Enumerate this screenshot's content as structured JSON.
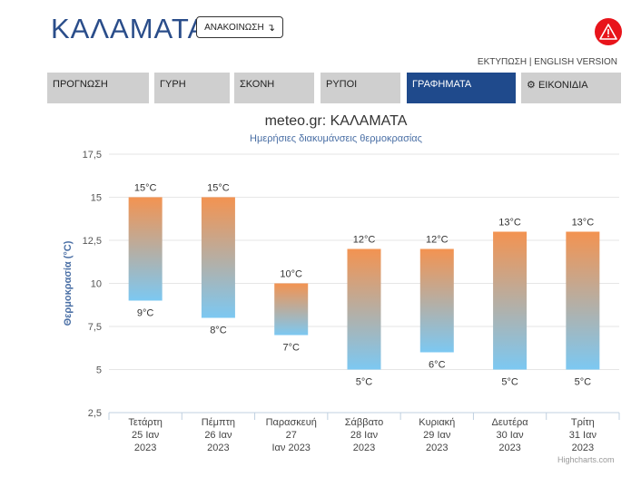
{
  "header": {
    "city": "ΚΑΛΑΜΑΤΑ",
    "announce_label": "ΑΝΑΚΟΙΝΩΣΗ",
    "announce_icon": "turn-down-arrow-icon",
    "alert_icon": "warning-triangle-icon",
    "alert_color": "#e8141b",
    "print_label": "ΕΚΤΥΠΩΣΗ",
    "separator": "|",
    "english_label": "ENGLISH VERSION"
  },
  "tabs": [
    {
      "label": "ΠΡΟΓΝΩΣΗ",
      "active": false
    },
    {
      "label": "ΓΥΡΗ",
      "active": false
    },
    {
      "label": "ΣΚΟΝΗ",
      "active": false
    },
    {
      "label": "ΡΥΠΟΙ",
      "active": false
    },
    {
      "label": "ΓΡΑΦΗΜΑΤΑ",
      "active": true
    },
    {
      "label": "ΕΙΚΟΝΙΔΙΑ",
      "icon": "gear-icon",
      "active": false
    }
  ],
  "colors": {
    "brand": "#2a4d8a",
    "active_tab": "#1f4a8c",
    "bar_top": "#f39351",
    "bar_bottom": "#7cc8f2"
  },
  "chart_data": {
    "type": "bar",
    "subtype": "columnrange",
    "title": "meteo.gr: ΚΑΛΑΜΑΤΑ",
    "subtitle": "Ημερήσιες διακυμάνσεις θερμοκρασίας",
    "ylabel": "Θερμοκρασία (°C)",
    "ylim": [
      2.5,
      17.5
    ],
    "yticks": [
      "2,5",
      "5",
      "7,5",
      "10",
      "12,5",
      "15",
      "17,5"
    ],
    "grid": true,
    "unit": "°C",
    "categories": [
      [
        "Τετάρτη",
        "25 Ιαν",
        "2023"
      ],
      [
        "Πέμπτη",
        "26 Ιαν",
        "2023"
      ],
      [
        "Παρασκευή",
        "27",
        "Ιαν 2023"
      ],
      [
        "Σάββατο",
        "28 Ιαν",
        "2023"
      ],
      [
        "Κυριακή",
        "29 Ιαν",
        "2023"
      ],
      [
        "Δευτέρα",
        "30 Ιαν",
        "2023"
      ],
      [
        "Τρίτη",
        "31 Ιαν",
        "2023"
      ]
    ],
    "max": [
      15,
      15,
      10,
      12,
      12,
      13,
      13
    ],
    "min": [
      9,
      8,
      7,
      5,
      6,
      5,
      5
    ],
    "credit": "Highcharts.com"
  }
}
